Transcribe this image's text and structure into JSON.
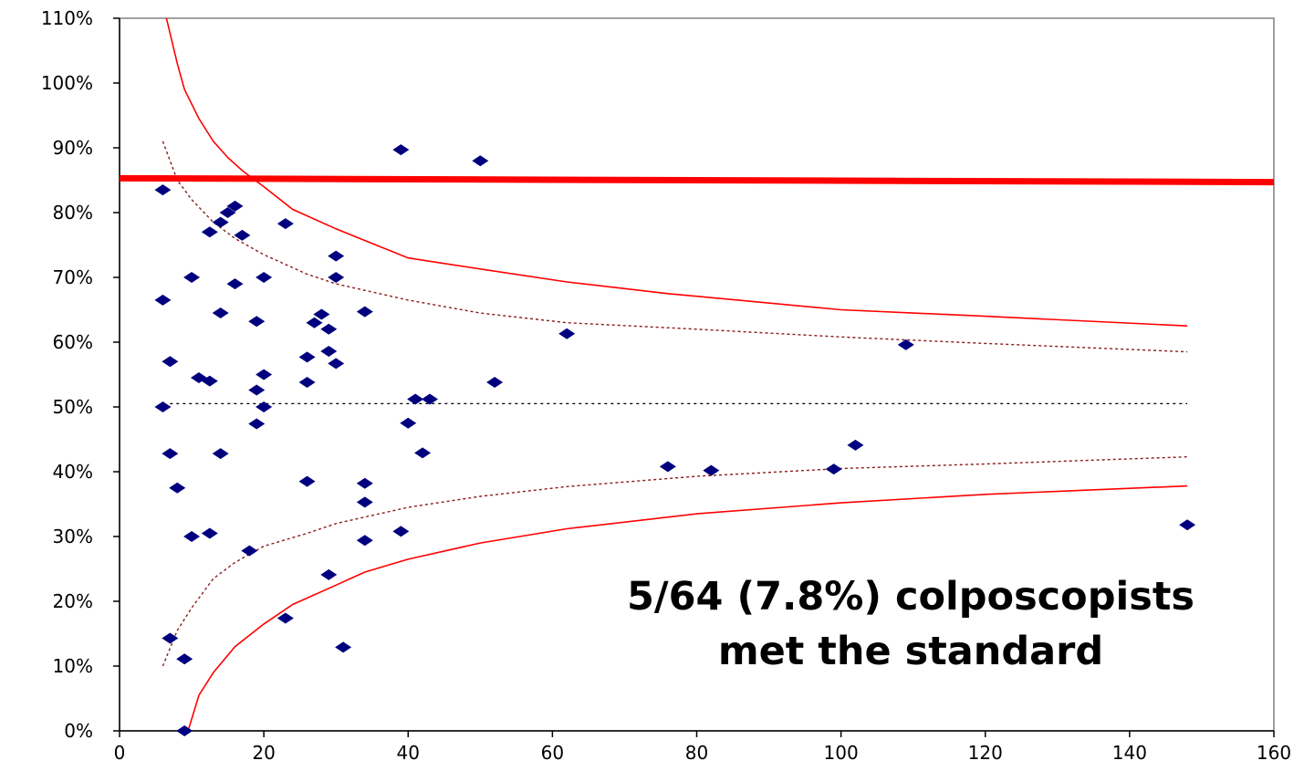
{
  "chart_data": {
    "type": "scatter",
    "title": "",
    "xlabel": "",
    "ylabel": "",
    "xlim": [
      0,
      160
    ],
    "ylim": [
      0,
      110
    ],
    "x_ticks": [
      "0",
      "20",
      "40",
      "60",
      "80",
      "100",
      "120",
      "140",
      "160"
    ],
    "x_tick_values": [
      0,
      20,
      40,
      60,
      80,
      100,
      120,
      140,
      160
    ],
    "y_ticks": [
      "0%",
      "10%",
      "20%",
      "30%",
      "40%",
      "50%",
      "60%",
      "70%",
      "80%",
      "90%",
      "100%",
      "110%"
    ],
    "y_tick_values": [
      0,
      10,
      20,
      30,
      40,
      50,
      60,
      70,
      80,
      90,
      100,
      110
    ],
    "grid": false,
    "legend": "none",
    "annotation": [
      "5/64 (7.8%) colposcopists",
      "met the standard"
    ],
    "colors": {
      "points": "#00007f",
      "limits": "#ff0000",
      "inner_limits": "#8b1a1a",
      "mean": "#000000",
      "standard": "#ff0000"
    },
    "points": [
      {
        "x": 6,
        "y": 83.5
      },
      {
        "x": 6,
        "y": 66.5
      },
      {
        "x": 6,
        "y": 50
      },
      {
        "x": 7,
        "y": 57
      },
      {
        "x": 7,
        "y": 42.8
      },
      {
        "x": 7,
        "y": 14.3
      },
      {
        "x": 8,
        "y": 37.5
      },
      {
        "x": 9,
        "y": 11.1
      },
      {
        "x": 9,
        "y": 0
      },
      {
        "x": 10,
        "y": 70
      },
      {
        "x": 10,
        "y": 30
      },
      {
        "x": 11,
        "y": 54.5
      },
      {
        "x": 12.5,
        "y": 77
      },
      {
        "x": 12.5,
        "y": 54
      },
      {
        "x": 12.5,
        "y": 30.5
      },
      {
        "x": 14,
        "y": 78.5
      },
      {
        "x": 14,
        "y": 64.5
      },
      {
        "x": 14,
        "y": 42.8
      },
      {
        "x": 15,
        "y": 80
      },
      {
        "x": 16,
        "y": 81
      },
      {
        "x": 16,
        "y": 69
      },
      {
        "x": 17,
        "y": 76.5
      },
      {
        "x": 18,
        "y": 27.8
      },
      {
        "x": 19,
        "y": 63.2
      },
      {
        "x": 19,
        "y": 52.6
      },
      {
        "x": 19,
        "y": 47.4
      },
      {
        "x": 20,
        "y": 70
      },
      {
        "x": 20,
        "y": 55
      },
      {
        "x": 20,
        "y": 50
      },
      {
        "x": 23,
        "y": 78.3
      },
      {
        "x": 23,
        "y": 17.4
      },
      {
        "x": 26,
        "y": 57.7
      },
      {
        "x": 26,
        "y": 53.8
      },
      {
        "x": 26,
        "y": 38.5
      },
      {
        "x": 27,
        "y": 63
      },
      {
        "x": 28,
        "y": 64.3
      },
      {
        "x": 29,
        "y": 62
      },
      {
        "x": 29,
        "y": 58.6
      },
      {
        "x": 29,
        "y": 24.1
      },
      {
        "x": 30,
        "y": 73.3
      },
      {
        "x": 30,
        "y": 70
      },
      {
        "x": 30,
        "y": 56.7
      },
      {
        "x": 31,
        "y": 12.9
      },
      {
        "x": 34,
        "y": 64.7
      },
      {
        "x": 34,
        "y": 38.2
      },
      {
        "x": 34,
        "y": 35.3
      },
      {
        "x": 34,
        "y": 29.4
      },
      {
        "x": 39,
        "y": 89.7
      },
      {
        "x": 39,
        "y": 30.8
      },
      {
        "x": 40,
        "y": 47.5
      },
      {
        "x": 41,
        "y": 51.2
      },
      {
        "x": 42,
        "y": 42.9
      },
      {
        "x": 43,
        "y": 51.2
      },
      {
        "x": 50,
        "y": 88
      },
      {
        "x": 52,
        "y": 53.8
      },
      {
        "x": 62,
        "y": 61.3
      },
      {
        "x": 76,
        "y": 40.8
      },
      {
        "x": 82,
        "y": 40.2
      },
      {
        "x": 99,
        "y": 40.4
      },
      {
        "x": 102,
        "y": 44.1
      },
      {
        "x": 109,
        "y": 59.6
      },
      {
        "x": 148,
        "y": 31.8
      }
    ],
    "series": [
      {
        "style": "solid",
        "role": "upper outer limit",
        "values": [
          [
            6.5,
            110
          ],
          [
            8,
            103
          ],
          [
            9,
            99
          ],
          [
            11,
            94.5
          ],
          [
            13,
            91
          ],
          [
            15,
            88.5
          ],
          [
            17,
            86.5
          ],
          [
            20,
            84
          ],
          [
            24,
            80.5
          ],
          [
            30,
            77.5
          ],
          [
            40,
            73
          ],
          [
            50,
            71.3
          ],
          [
            62,
            69.3
          ],
          [
            76,
            67.5
          ],
          [
            100,
            65
          ],
          [
            120,
            64
          ],
          [
            148,
            62.5
          ]
        ]
      },
      {
        "style": "solid",
        "role": "lower outer limit",
        "values": [
          [
            9.5,
            0
          ],
          [
            11,
            5.5
          ],
          [
            13,
            9
          ],
          [
            16,
            13
          ],
          [
            20,
            16.5
          ],
          [
            24,
            19.5
          ],
          [
            30,
            22.5
          ],
          [
            34,
            24.5
          ],
          [
            40,
            26.5
          ],
          [
            50,
            29
          ],
          [
            62,
            31.2
          ],
          [
            80,
            33.5
          ],
          [
            100,
            35.2
          ],
          [
            120,
            36.5
          ],
          [
            148,
            37.8
          ]
        ]
      },
      {
        "style": "dotted",
        "role": "upper inner limit",
        "values": [
          [
            6,
            91
          ],
          [
            8,
            85
          ],
          [
            10,
            82
          ],
          [
            13,
            78.5
          ],
          [
            16,
            76
          ],
          [
            20,
            73.5
          ],
          [
            26,
            70.5
          ],
          [
            30,
            69
          ],
          [
            40,
            66.5
          ],
          [
            50,
            64.5
          ],
          [
            62,
            63
          ],
          [
            80,
            62
          ],
          [
            100,
            60.8
          ],
          [
            120,
            59.8
          ],
          [
            148,
            58.5
          ]
        ]
      },
      {
        "style": "dotted",
        "role": "lower inner limit",
        "values": [
          [
            6,
            10
          ],
          [
            8,
            15.5
          ],
          [
            10,
            19
          ],
          [
            13,
            23.5
          ],
          [
            16,
            26
          ],
          [
            20,
            28.5
          ],
          [
            26,
            30.5
          ],
          [
            30,
            32
          ],
          [
            40,
            34.5
          ],
          [
            50,
            36.2
          ],
          [
            62,
            37.7
          ],
          [
            80,
            39.3
          ],
          [
            100,
            40.5
          ],
          [
            120,
            41.2
          ],
          [
            148,
            42.3
          ]
        ]
      },
      {
        "style": "dotted",
        "role": "mean",
        "values": [
          [
            7,
            50.5
          ],
          [
            148,
            50.5
          ]
        ]
      },
      {
        "style": "thick",
        "role": "standard",
        "values": [
          [
            0,
            85.3
          ],
          [
            160,
            84.7
          ]
        ]
      }
    ]
  }
}
